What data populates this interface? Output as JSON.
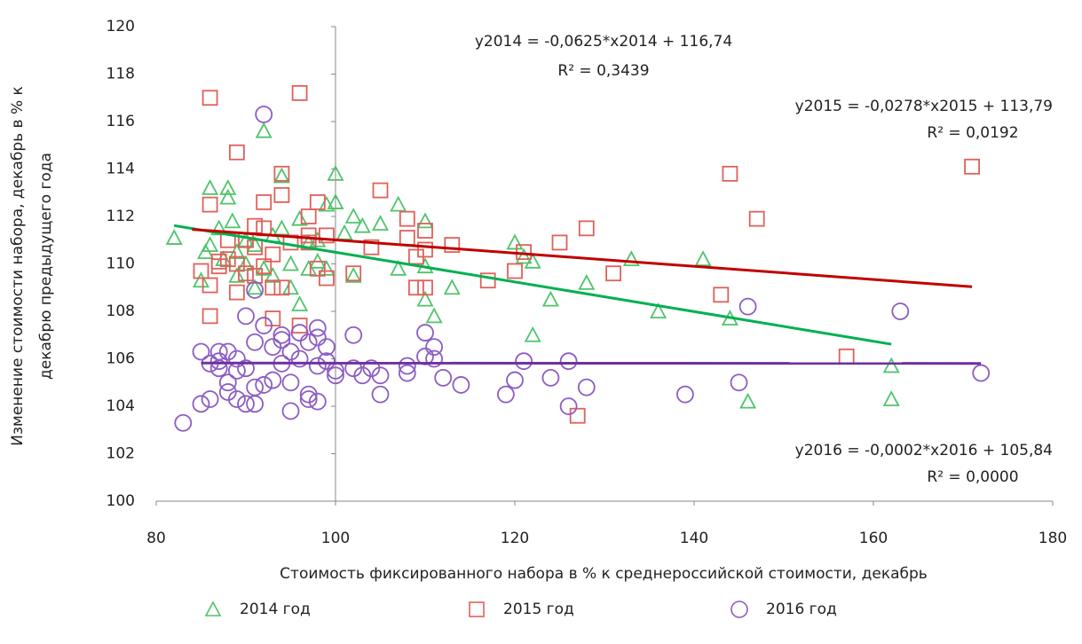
{
  "chart_data": {
    "type": "scatter",
    "xlabel": "Стоимость фиксированного набора в % к среднероссийской стоимости, декабрь",
    "ylabel": [
      "Изменение стоимости  набора, декабрь  в % к",
      "декабрю предыдущего года"
    ],
    "xlim": [
      80,
      180
    ],
    "xticks": [
      80,
      100,
      120,
      140,
      160,
      180
    ],
    "ylim": [
      100,
      120
    ],
    "yticks": [
      100,
      102,
      104,
      106,
      108,
      110,
      112,
      114,
      116,
      118,
      120
    ],
    "y_axis_at_x": 100,
    "legend": "bottom",
    "series": [
      {
        "name": "2014 год",
        "marker": "triangle",
        "color": "#4ec46a",
        "x": [
          82,
          85,
          85.5,
          86,
          86,
          87,
          87.5,
          88,
          88,
          88.5,
          89,
          89,
          90,
          90,
          91,
          91,
          92,
          92,
          93,
          93,
          94,
          94,
          95,
          95,
          96,
          96,
          97,
          97,
          98,
          98,
          99,
          99,
          100,
          100,
          101,
          102,
          102,
          103,
          105,
          107,
          107,
          110,
          110,
          110,
          111,
          113,
          120,
          121,
          122,
          122,
          124,
          128,
          133,
          136,
          141,
          144,
          146,
          162,
          162
        ],
        "values": [
          111.1,
          109.3,
          110.5,
          113.2,
          110.8,
          111.5,
          110.2,
          113.2,
          112.8,
          111.8,
          110.5,
          109.5,
          110,
          111,
          110.8,
          109,
          115.6,
          109.8,
          109.5,
          111.2,
          113.7,
          111.5,
          110,
          109,
          108.3,
          111.9,
          110.9,
          109.8,
          110.1,
          111,
          112.5,
          109.8,
          113.8,
          112.6,
          111.3,
          112,
          109.5,
          111.6,
          111.7,
          109.8,
          112.5,
          111.8,
          108.5,
          109.9,
          107.8,
          109,
          110.9,
          110.3,
          107,
          110.1,
          108.5,
          109.2,
          110.2,
          108,
          110.2,
          107.7,
          104.2,
          105.7,
          104.3
        ],
        "trend": {
          "slope": -0.0625,
          "intercept": 116.74,
          "xlim": [
            82,
            162
          ],
          "color": "#00b050",
          "label": "y2014 = -0,0625*x2014 + 116,74",
          "r2_label": "R² = 0,3439"
        }
      },
      {
        "name": "2015 год",
        "marker": "square",
        "color": "#e0605a",
        "x": [
          85,
          86,
          86,
          86,
          86,
          87,
          87,
          88,
          88,
          89,
          89,
          89,
          90,
          90,
          91,
          91,
          91,
          92,
          92,
          92,
          93,
          93,
          93,
          94,
          94,
          94,
          95,
          96,
          96,
          97,
          97,
          97,
          98,
          98,
          99,
          99,
          102,
          104,
          105,
          108,
          108,
          109,
          109,
          110,
          110,
          110,
          113,
          117,
          120,
          121,
          125,
          127,
          128,
          131,
          143,
          144,
          147,
          157,
          171
        ],
        "values": [
          109.7,
          117,
          112.5,
          109.1,
          107.8,
          110.1,
          109.9,
          111,
          110.2,
          114.7,
          108.8,
          110,
          109.6,
          111,
          111.6,
          110.7,
          109.5,
          112.6,
          111.5,
          109.9,
          107.7,
          110.4,
          109,
          113.8,
          112.9,
          109,
          110.9,
          117.2,
          107.4,
          112,
          110.9,
          111.2,
          112.6,
          109.8,
          111.2,
          109.4,
          109.6,
          110.7,
          113.1,
          111.9,
          111.1,
          109,
          110.3,
          111.4,
          109,
          110.6,
          110.8,
          109.3,
          109.7,
          110.5,
          110.9,
          103.6,
          111.5,
          109.6,
          108.7,
          113.8,
          111.9,
          106.1,
          114.1
        ],
        "trend": {
          "slope": -0.0278,
          "intercept": 113.79,
          "xlim": [
            84,
            171
          ],
          "color": "#c00000",
          "label": "y2015 = -0,0278*x2015 + 113,79",
          "r2_label": "R² = 0,0192"
        }
      },
      {
        "name": "2016 год",
        "marker": "circle",
        "color": "#8c5cc4",
        "x": [
          83,
          85,
          85,
          86,
          86,
          87,
          87,
          87,
          88,
          88,
          88,
          89,
          89,
          89,
          90,
          90,
          90,
          91,
          91,
          91,
          91,
          92,
          92,
          92,
          93,
          93,
          94,
          94,
          94,
          95,
          95,
          95,
          96,
          96,
          97,
          97,
          97,
          98,
          98,
          98,
          98,
          99,
          99,
          100,
          100,
          102,
          102,
          103,
          104,
          105,
          105,
          108,
          108,
          110,
          110,
          111,
          111,
          112,
          114,
          119,
          120,
          121,
          124,
          126,
          126,
          128,
          139,
          145,
          146,
          163,
          172
        ],
        "values": [
          103.3,
          104.1,
          106.3,
          104.3,
          105.8,
          106.3,
          105.9,
          105.6,
          106.3,
          104.6,
          105,
          104.3,
          106,
          105.5,
          107.8,
          104.1,
          105.6,
          108.9,
          104.8,
          104.1,
          106.7,
          116.3,
          107.4,
          104.9,
          105.1,
          106.5,
          106.8,
          107,
          105.8,
          106.3,
          103.8,
          105,
          106,
          107.1,
          106.7,
          104.5,
          104.3,
          107.3,
          106.9,
          105.7,
          104.2,
          106.5,
          105.9,
          105.5,
          105.3,
          107,
          105.6,
          105.3,
          105.6,
          105.3,
          104.5,
          105.7,
          105.4,
          107.1,
          106.1,
          106.5,
          106,
          105.2,
          104.9,
          104.5,
          105.1,
          105.9,
          105.2,
          105.9,
          104,
          104.8,
          104.5,
          105,
          108.2,
          108,
          105.4
        ],
        "trend": {
          "slope": -0.0002,
          "intercept": 105.84,
          "xlim": [
            85,
            172
          ],
          "color": "#7030a0",
          "label": "y2016 = -0,0002*x2016 + 105,84",
          "r2_label": "R² = 0,0000"
        }
      }
    ]
  }
}
